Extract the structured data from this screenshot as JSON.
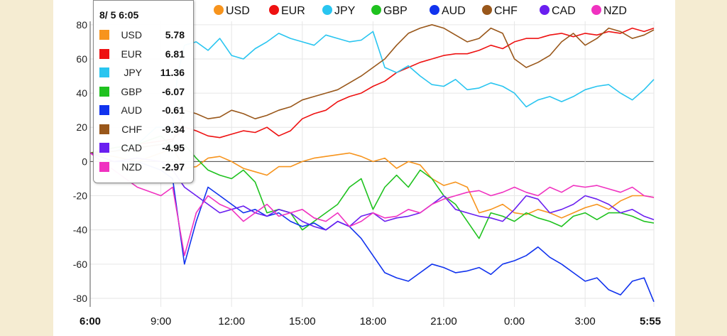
{
  "tooltip": {
    "time": "8/ 5 6:05",
    "rows": [
      {
        "name": "USD",
        "value": "5.78",
        "color": "#f7941d"
      },
      {
        "name": "EUR",
        "value": "6.81",
        "color": "#ee1111"
      },
      {
        "name": "JPY",
        "value": "11.36",
        "color": "#29c5f0"
      },
      {
        "name": "GBP",
        "value": "-6.07",
        "color": "#1fc21f"
      },
      {
        "name": "AUD",
        "value": "-0.61",
        "color": "#1133ee"
      },
      {
        "name": "CHF",
        "value": "-9.34",
        "color": "#99571a"
      },
      {
        "name": "CAD",
        "value": "-4.95",
        "color": "#6a1ff0"
      },
      {
        "name": "NZD",
        "value": "-2.97",
        "color": "#f032c0"
      }
    ]
  },
  "chart_data": {
    "type": "line",
    "title": "",
    "xlabel": "",
    "ylabel": "",
    "ylim": [
      -85,
      82
    ],
    "yticks": [
      -80,
      -60,
      -40,
      -20,
      0,
      20,
      40,
      60,
      80
    ],
    "ytick_labels": [
      "-80",
      "-60",
      "-40",
      "-20",
      "0",
      "20",
      "40",
      "60",
      "80"
    ],
    "xlim": [
      0,
      23.917
    ],
    "xticks": [
      0,
      3,
      6,
      9,
      12,
      15,
      18,
      21,
      23.917
    ],
    "xtick_labels": [
      "6:00",
      "9:00",
      "12:00",
      "15:00",
      "18:00",
      "21:00",
      "0:00",
      "3:00",
      "5:55"
    ],
    "bold_xtick_labels": [
      "6:00",
      "5:55"
    ],
    "zero_line": true,
    "grid": true,
    "legend_position": "top",
    "series": [
      {
        "name": "USD",
        "color": "#f7941d",
        "x": [
          0,
          1,
          2,
          3,
          3.5,
          4,
          4.5,
          5,
          5.5,
          6,
          6.5,
          7,
          7.5,
          8,
          8.5,
          9,
          9.5,
          10,
          10.5,
          11,
          11.5,
          12,
          12.5,
          13,
          13.5,
          14,
          14.5,
          15,
          15.5,
          16,
          16.5,
          17,
          17.5,
          18,
          18.5,
          19,
          19.5,
          20,
          20.5,
          21,
          21.5,
          22,
          22.5,
          23,
          23.5,
          23.917
        ],
        "y": [
          5,
          3,
          0,
          5,
          8,
          -4,
          -3,
          2,
          3,
          0,
          -4,
          -6,
          -8,
          -3,
          -3,
          0,
          2,
          3,
          4,
          5,
          3,
          0,
          2,
          -4,
          0,
          -2,
          -10,
          -14,
          -12,
          -15,
          -30,
          -28,
          -25,
          -30,
          -31,
          -28,
          -30,
          -33,
          -30,
          -27,
          -25,
          -28,
          -23,
          -20,
          -20,
          -21
        ]
      },
      {
        "name": "EUR",
        "color": "#ee1111",
        "x": [
          0,
          1,
          2,
          3,
          3.5,
          4,
          4.5,
          5,
          5.5,
          6,
          6.5,
          7,
          7.5,
          8,
          8.5,
          9,
          9.5,
          10,
          10.5,
          11,
          11.5,
          12,
          12.5,
          13,
          13.5,
          14,
          14.5,
          15,
          15.5,
          16,
          16.5,
          17,
          17.5,
          18,
          18.5,
          19,
          19.5,
          20,
          20.5,
          21,
          21.5,
          22,
          22.5,
          23,
          23.5,
          23.917
        ],
        "y": [
          5,
          8,
          10,
          12,
          13,
          20,
          18,
          15,
          14,
          16,
          18,
          17,
          20,
          15,
          18,
          25,
          28,
          30,
          35,
          38,
          40,
          44,
          47,
          52,
          55,
          58,
          60,
          62,
          63,
          63,
          65,
          68,
          66,
          70,
          72,
          72,
          74,
          75,
          73,
          75,
          74,
          76,
          75,
          78,
          76,
          78
        ]
      },
      {
        "name": "JPY",
        "color": "#29c5f0",
        "x": [
          0,
          1,
          2,
          2.8,
          3,
          3.2,
          3.5,
          3.7,
          4,
          4.5,
          5,
          5.5,
          6,
          6.5,
          7,
          7.5,
          8,
          8.5,
          9,
          9.5,
          10,
          10.5,
          11,
          11.5,
          12,
          12.5,
          13,
          13.5,
          14,
          14.5,
          15,
          15.5,
          16,
          16.5,
          17,
          17.5,
          18,
          18.5,
          19,
          19.5,
          20,
          20.5,
          21,
          21.5,
          22,
          22.5,
          23,
          23.5,
          23.917
        ],
        "y": [
          5,
          6,
          10,
          20,
          20,
          20,
          18,
          50,
          68,
          70,
          65,
          72,
          62,
          60,
          66,
          70,
          75,
          72,
          70,
          68,
          74,
          72,
          70,
          71,
          76,
          55,
          52,
          56,
          50,
          45,
          44,
          48,
          42,
          43,
          46,
          44,
          40,
          32,
          36,
          38,
          35,
          38,
          42,
          44,
          45,
          40,
          36,
          42,
          48
        ]
      },
      {
        "name": "GBP",
        "color": "#1fc21f",
        "x": [
          0,
          1,
          2,
          3,
          3.5,
          4,
          4.5,
          5,
          5.5,
          6,
          6.5,
          7,
          7.5,
          8,
          8.5,
          9,
          9.5,
          10,
          10.5,
          11,
          11.5,
          12,
          12.5,
          13,
          13.5,
          14,
          14.5,
          15,
          15.5,
          16,
          16.5,
          17,
          17.5,
          18,
          18.5,
          19,
          19.5,
          20,
          20.5,
          21,
          21.5,
          22,
          22.5,
          23,
          23.5,
          23.917
        ],
        "y": [
          5,
          8,
          10,
          15,
          8,
          10,
          2,
          -5,
          -8,
          -10,
          -5,
          -12,
          -30,
          -28,
          -30,
          -40,
          -35,
          -30,
          -25,
          -15,
          -10,
          -28,
          -15,
          -8,
          -15,
          -5,
          -10,
          -20,
          -25,
          -35,
          -45,
          -30,
          -32,
          -35,
          -30,
          -33,
          -35,
          -38,
          -32,
          -30,
          -34,
          -30,
          -30,
          -32,
          -35,
          -36
        ]
      },
      {
        "name": "AUD",
        "color": "#1133ee",
        "x": [
          0,
          1,
          2,
          3,
          3.5,
          4,
          4.5,
          5,
          5.5,
          6,
          6.5,
          7,
          7.5,
          8,
          8.5,
          9,
          9.5,
          10,
          10.5,
          11,
          11.5,
          12,
          12.5,
          13,
          13.5,
          14,
          14.5,
          15,
          15.5,
          16,
          16.5,
          17,
          17.5,
          18,
          18.5,
          19,
          19.5,
          20,
          20.5,
          21,
          21.5,
          22,
          22.5,
          23,
          23.5,
          23.917
        ],
        "y": [
          5,
          0,
          0,
          -5,
          -10,
          -60,
          -35,
          -15,
          -20,
          -25,
          -30,
          -28,
          -32,
          -30,
          -35,
          -38,
          -36,
          -40,
          -35,
          -38,
          -45,
          -55,
          -65,
          -68,
          -70,
          -65,
          -60,
          -62,
          -65,
          -64,
          -62,
          -66,
          -60,
          -58,
          -55,
          -50,
          -56,
          -60,
          -65,
          -70,
          -68,
          -75,
          -78,
          -70,
          -68,
          -82
        ]
      },
      {
        "name": "CHF",
        "color": "#99571a",
        "x": [
          0,
          1,
          2,
          3,
          3.5,
          4,
          4.5,
          5,
          5.5,
          6,
          6.5,
          7,
          7.5,
          8,
          8.5,
          9,
          9.5,
          10,
          10.5,
          11,
          11.5,
          12,
          12.5,
          13,
          13.5,
          14,
          14.5,
          15,
          15.5,
          16,
          16.5,
          17,
          17.5,
          18,
          18.5,
          19,
          19.5,
          20,
          20.5,
          21,
          21.5,
          22,
          22.5,
          23,
          23.5,
          23.917
        ],
        "y": [
          5,
          6,
          8,
          10,
          12,
          30,
          28,
          25,
          26,
          30,
          28,
          25,
          27,
          30,
          32,
          36,
          38,
          40,
          42,
          46,
          50,
          55,
          60,
          68,
          75,
          78,
          80,
          78,
          74,
          70,
          72,
          78,
          75,
          60,
          55,
          58,
          62,
          70,
          75,
          68,
          72,
          78,
          76,
          72,
          74,
          77
        ]
      },
      {
        "name": "CAD",
        "color": "#6a1ff0",
        "x": [
          0,
          1,
          2,
          3,
          3.5,
          4,
          4.5,
          5,
          5.5,
          6,
          6.5,
          7,
          7.5,
          8,
          8.5,
          9,
          9.5,
          10,
          10.5,
          11,
          11.5,
          12,
          12.5,
          13,
          13.5,
          14,
          14.5,
          15,
          15.5,
          16,
          16.5,
          17,
          17.5,
          18,
          18.5,
          19,
          19.5,
          20,
          20.5,
          21,
          21.5,
          22,
          22.5,
          23,
          23.5,
          23.917
        ],
        "y": [
          5,
          0,
          2,
          0,
          -5,
          -15,
          -20,
          -25,
          -30,
          -28,
          -26,
          -30,
          -32,
          -28,
          -30,
          -35,
          -38,
          -40,
          -35,
          -38,
          -32,
          -30,
          -35,
          -33,
          -32,
          -30,
          -25,
          -20,
          -28,
          -30,
          -32,
          -33,
          -35,
          -28,
          -20,
          -22,
          -30,
          -28,
          -25,
          -20,
          -22,
          -25,
          -30,
          -28,
          -32,
          -34
        ]
      },
      {
        "name": "NZD",
        "color": "#f032c0",
        "x": [
          0,
          1,
          2,
          3,
          3.5,
          4,
          4.5,
          5,
          5.5,
          6,
          6.5,
          7,
          7.5,
          8,
          8.5,
          9,
          9.5,
          10,
          10.5,
          11,
          11.5,
          12,
          12.5,
          13,
          13.5,
          14,
          14.5,
          15,
          15.5,
          16,
          16.5,
          17,
          17.5,
          18,
          18.5,
          19,
          19.5,
          20,
          20.5,
          21,
          21.5,
          22,
          22.5,
          23,
          23.5,
          23.917
        ],
        "y": [
          5,
          -5,
          -15,
          -20,
          -15,
          -55,
          -30,
          -20,
          -25,
          -28,
          -35,
          -30,
          -25,
          -32,
          -30,
          -28,
          -33,
          -35,
          -30,
          -38,
          -35,
          -30,
          -33,
          -32,
          -28,
          -30,
          -25,
          -22,
          -20,
          -18,
          -17,
          -20,
          -18,
          -15,
          -18,
          -20,
          -15,
          -18,
          -14,
          -15,
          -14,
          -16,
          -18,
          -15,
          -20,
          -21
        ]
      }
    ]
  }
}
